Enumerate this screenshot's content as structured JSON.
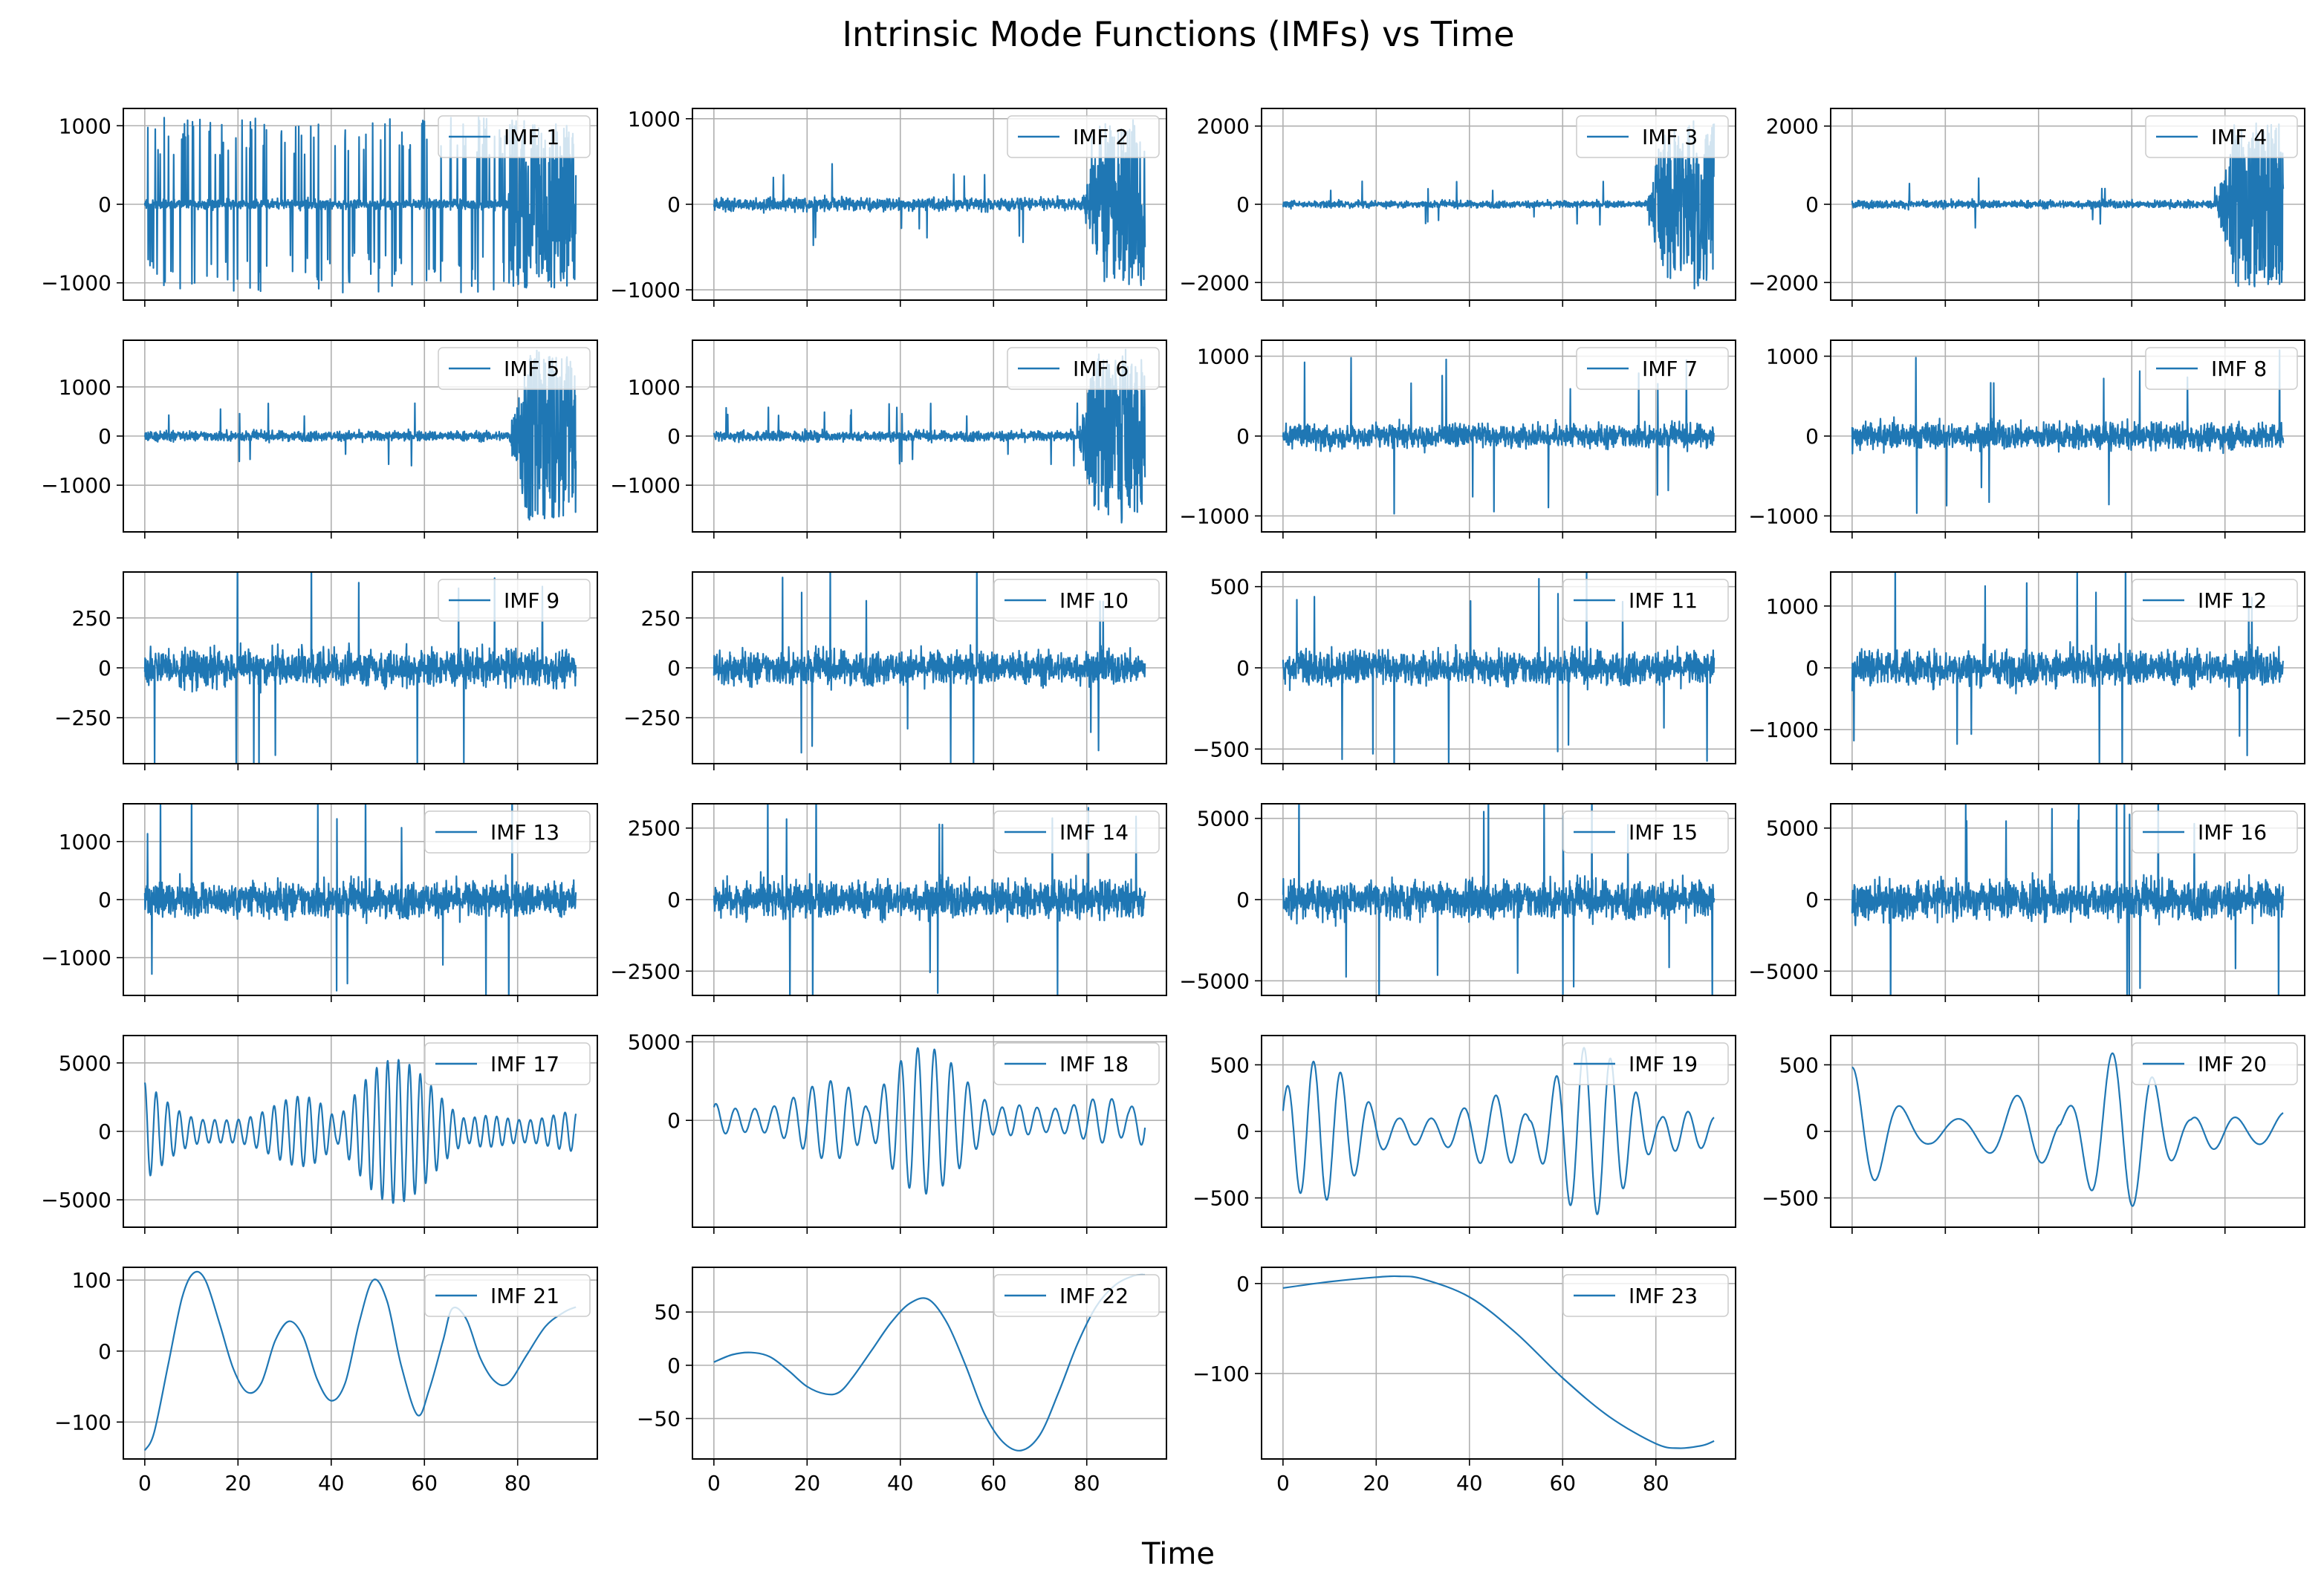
{
  "title": "Intrinsic Mode Functions (IMFs) vs Time",
  "xlabel": "Time",
  "colors": {
    "line": "#1f77b4",
    "grid": "#b0b0b0",
    "axes": "#000000",
    "legend_border": "#cccccc"
  },
  "chart_data": {
    "type": "line",
    "layout": "6x4 grid of subplots, shared time axis",
    "x_range": [
      0,
      92.5
    ],
    "xlim": [
      -4.6,
      97.1
    ],
    "x_ticks": [
      0,
      20,
      40,
      60,
      80
    ],
    "x_tick_labels": [
      "0",
      "20",
      "40",
      "60",
      "80"
    ],
    "legend_position": "top-right",
    "series": [
      {
        "name": "IMF 1",
        "kind": "spiky",
        "ylim": [
          -1220,
          1220
        ],
        "yticks": [
          -1000,
          0,
          1000
        ],
        "ytick_labels": [
          "−1000",
          "0",
          "1000"
        ],
        "base_amp": 130,
        "spike_amp": 1130,
        "burst_start": 78
      },
      {
        "name": "IMF 2",
        "kind": "noise",
        "ylim": [
          -1120,
          1120
        ],
        "yticks": [
          -1000,
          0,
          1000
        ],
        "ytick_labels": [
          "−1000",
          "0",
          "1000"
        ],
        "base_amp": 170,
        "burst_start": 79,
        "burst_amp": 1000
      },
      {
        "name": "IMF 3",
        "kind": "noise",
        "ylim": [
          -2450,
          2450
        ],
        "yticks": [
          -2000,
          0,
          2000
        ],
        "ytick_labels": [
          "−2000",
          "0",
          "2000"
        ],
        "base_amp": 200,
        "burst_start": 78,
        "burst_amp": 2200
      },
      {
        "name": "IMF 4",
        "kind": "noise",
        "ylim": [
          -2450,
          2450
        ],
        "yticks": [
          -2000,
          0,
          2000
        ],
        "ytick_labels": [
          "−2000",
          "0",
          "2000"
        ],
        "base_amp": 230,
        "burst_start": 78,
        "burst_amp": 2200
      },
      {
        "name": "IMF 5",
        "kind": "noise",
        "ylim": [
          -1950,
          1950
        ],
        "yticks": [
          -1000,
          0,
          1000
        ],
        "ytick_labels": [
          "−1000",
          "0",
          "1000"
        ],
        "base_amp": 230,
        "burst_start": 78,
        "burst_amp": 1800
      },
      {
        "name": "IMF 6",
        "kind": "noise",
        "ylim": [
          -1950,
          1950
        ],
        "yticks": [
          -1000,
          0,
          1000
        ],
        "ytick_labels": [
          "−1000",
          "0",
          "1000"
        ],
        "base_amp": 230,
        "burst_start": 78,
        "burst_amp": 1800
      },
      {
        "name": "IMF 7",
        "kind": "noise",
        "ylim": [
          -1200,
          1200
        ],
        "yticks": [
          -1000,
          0,
          1000
        ],
        "ytick_labels": [
          "−1000",
          "0",
          "1000"
        ],
        "base_amp": 330,
        "burst_start": 999,
        "burst_amp": 0
      },
      {
        "name": "IMF 8",
        "kind": "noise",
        "ylim": [
          -1200,
          1200
        ],
        "yticks": [
          -1000,
          0,
          1000
        ],
        "ytick_labels": [
          "−1000",
          "0",
          "1000"
        ],
        "base_amp": 380,
        "burst_start": 999,
        "burst_amp": 0
      },
      {
        "name": "IMF 9",
        "kind": "noise",
        "ylim": [
          -480,
          480
        ],
        "yticks": [
          -250,
          0,
          250
        ],
        "ytick_labels": [
          "−250",
          "0",
          "250"
        ],
        "base_amp": 210,
        "burst_start": 999,
        "burst_amp": 0
      },
      {
        "name": "IMF 10",
        "kind": "noise",
        "ylim": [
          -480,
          480
        ],
        "yticks": [
          -250,
          0,
          250
        ],
        "ytick_labels": [
          "−250",
          "0",
          "250"
        ],
        "base_amp": 190,
        "burst_start": 999,
        "burst_amp": 0
      },
      {
        "name": "IMF 11",
        "kind": "noise",
        "ylim": [
          -590,
          590
        ],
        "yticks": [
          -500,
          0,
          500
        ],
        "ytick_labels": [
          "−500",
          "0",
          "500"
        ],
        "base_amp": 230,
        "burst_start": 999,
        "burst_amp": 0
      },
      {
        "name": "IMF 12",
        "kind": "noise",
        "ylim": [
          -1550,
          1550
        ],
        "yticks": [
          -1000,
          0,
          1000
        ],
        "ytick_labels": [
          "−1000",
          "0",
          "1000"
        ],
        "base_amp": 650,
        "burst_start": 999,
        "burst_amp": 0
      },
      {
        "name": "IMF 13",
        "kind": "noise",
        "ylim": [
          -1650,
          1650
        ],
        "yticks": [
          -1000,
          0,
          1000
        ],
        "ytick_labels": [
          "−1000",
          "0",
          "1000"
        ],
        "base_amp": 700,
        "burst_start": 999,
        "burst_amp": 0
      },
      {
        "name": "IMF 14",
        "kind": "noise",
        "ylim": [
          -3350,
          3350
        ],
        "yticks": [
          -2500,
          0,
          2500
        ],
        "ytick_labels": [
          "−2500",
          "0",
          "2500"
        ],
        "base_amp": 1500,
        "burst_start": 999,
        "burst_amp": 0
      },
      {
        "name": "IMF 15",
        "kind": "noise",
        "ylim": [
          -5900,
          5900
        ],
        "yticks": [
          -5000,
          0,
          5000
        ],
        "ytick_labels": [
          "−5000",
          "0",
          "5000"
        ],
        "base_amp": 2600,
        "burst_start": 999,
        "burst_amp": 0
      },
      {
        "name": "IMF 16",
        "kind": "noise",
        "ylim": [
          -6700,
          6700
        ],
        "yticks": [
          -5000,
          0,
          5000
        ],
        "ytick_labels": [
          "−5000",
          "0",
          "5000"
        ],
        "base_amp": 3000,
        "burst_start": 999,
        "burst_amp": 0
      },
      {
        "name": "IMF 17",
        "kind": "oscillation",
        "ylim": [
          -7000,
          7000
        ],
        "yticks": [
          -5000,
          0,
          5000
        ],
        "ytick_labels": [
          "−5000",
          "0",
          "5000"
        ],
        "amp": 5500,
        "cycles": 38
      },
      {
        "name": "IMF 18",
        "kind": "oscillation",
        "ylim": [
          -6800,
          5400
        ],
        "yticks": [
          0,
          5000
        ],
        "ytick_labels": [
          "0",
          "5000"
        ],
        "amp": 5000,
        "cycles": 24
      },
      {
        "name": "IMF 19",
        "kind": "oscillation",
        "ylim": [
          -720,
          720
        ],
        "yticks": [
          -500,
          0,
          500
        ],
        "ytick_labels": [
          "−500",
          "0",
          "500"
        ],
        "amp": 650,
        "cycles": 15
      },
      {
        "name": "IMF 20",
        "kind": "oscillation",
        "ylim": [
          -720,
          720
        ],
        "yticks": [
          -500,
          0,
          500
        ],
        "ytick_labels": [
          "−500",
          "0",
          "500"
        ],
        "amp": 620,
        "cycles": 9
      },
      {
        "name": "IMF 21",
        "kind": "points",
        "ylim": [
          -152,
          118
        ],
        "yticks": [
          -100,
          0,
          100
        ],
        "ytick_labels": [
          "−100",
          "0",
          "100"
        ],
        "x": [
          0,
          2,
          5,
          8,
          10.5,
          13,
          16,
          19,
          22,
          25,
          28,
          31,
          34,
          37,
          40,
          43,
          46,
          49,
          52,
          55,
          58.5,
          61,
          64,
          66,
          69,
          72,
          75,
          78,
          82,
          86,
          90,
          92.5
        ],
        "y": [
          -140,
          -115,
          -20,
          75,
          110,
          100,
          40,
          -25,
          -58,
          -45,
          15,
          42,
          20,
          -40,
          -70,
          -45,
          40,
          100,
          70,
          -20,
          -90,
          -55,
          15,
          60,
          45,
          -10,
          -42,
          -45,
          -5,
          35,
          55,
          62
        ]
      },
      {
        "name": "IMF 22",
        "kind": "points",
        "ylim": [
          -88,
          92
        ],
        "yticks": [
          -50,
          0,
          50
        ],
        "ytick_labels": [
          "−50",
          "0",
          "50"
        ],
        "x": [
          0,
          4,
          8,
          12,
          16,
          20,
          24,
          27,
          30,
          34,
          38,
          42,
          46,
          50,
          54,
          58,
          62,
          66,
          70,
          74,
          78,
          82,
          86,
          90,
          92.5
        ],
        "y": [
          3,
          10,
          12,
          8,
          -5,
          -20,
          -27,
          -25,
          -10,
          15,
          40,
          58,
          62,
          40,
          0,
          -45,
          -72,
          -80,
          -65,
          -25,
          20,
          55,
          75,
          84,
          85
        ]
      },
      {
        "name": "IMF 23",
        "kind": "points",
        "ylim": [
          -195,
          18
        ],
        "yticks": [
          -100,
          0
        ],
        "ytick_labels": [
          "−100",
          "0"
        ],
        "x": [
          0,
          10,
          20,
          25,
          30,
          40,
          50,
          60,
          70,
          80,
          85,
          90,
          92.5
        ],
        "y": [
          -5,
          2,
          7,
          8,
          5,
          -15,
          -55,
          -105,
          -148,
          -178,
          -183,
          -180,
          -175
        ]
      }
    ]
  }
}
